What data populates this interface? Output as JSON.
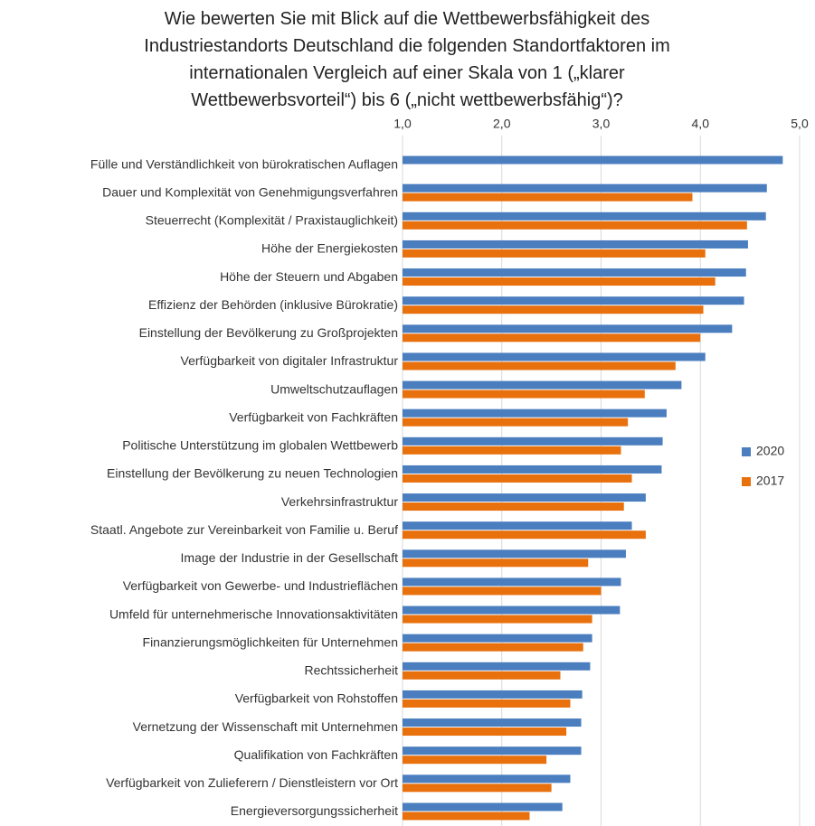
{
  "chart_data": {
    "type": "hbar",
    "title": "Wie bewerten Sie mit Blick auf die Wettbewerbsfähigkeit des Industriestandorts Deutschland die folgenden Standortfaktoren im internationalen Vergleich auf einer Skala von 1 („klarer Wettbewerbsvorteil“) bis 6 („nicht wettbewerbsfähig“)?",
    "categories": [
      "Fülle und Verständlichkeit von bürokratischen Auflagen",
      "Dauer und Komplexität von Genehmigungsverfahren",
      "Steuerrecht (Komplexität / Praxistauglichkeit)",
      "Höhe der Energiekosten",
      "Höhe der Steuern und Abgaben",
      "Effizienz der Behörden (inklusive Bürokratie)",
      "Einstellung der Bevölkerung zu Großprojekten",
      "Verfügbarkeit von digitaler Infrastruktur",
      "Umweltschutzauflagen",
      "Verfügbarkeit von Fachkräften",
      "Politische Unterstützung im globalen Wettbewerb",
      "Einstellung der Bevölkerung zu neuen Technologien",
      "Verkehrsinfrastruktur",
      "Staatl. Angebote zur Vereinbarkeit von Familie u. Beruf",
      "Image der Industrie in der Gesellschaft",
      "Verfügbarkeit von Gewerbe- und Industrieflächen",
      "Umfeld für unternehmerische Innovationsaktivitäten",
      "Finanzierungsmöglichkeiten für Unternehmen",
      "Rechtssicherheit",
      "Verfügbarkeit von Rohstoffen",
      "Vernetzung der Wissenschaft mit Unternehmen",
      "Qualifikation von Fachkräften",
      "Verfügbarkeit von Zulieferern / Dienstleistern vor Ort",
      "Energieversorgungssicherheit"
    ],
    "series": [
      {
        "name": "2020",
        "color": "#4a7ebf",
        "values": [
          4.83,
          4.67,
          4.66,
          4.48,
          4.46,
          4.44,
          4.32,
          4.05,
          3.81,
          3.66,
          3.62,
          3.61,
          3.45,
          3.31,
          3.25,
          3.2,
          3.19,
          2.91,
          2.89,
          2.81,
          2.8,
          2.8,
          2.69,
          2.61
        ]
      },
      {
        "name": "2017",
        "color": "#e8700d",
        "values": [
          null,
          3.92,
          4.47,
          4.05,
          4.15,
          4.03,
          4.0,
          3.75,
          3.44,
          3.27,
          3.2,
          3.31,
          3.23,
          3.45,
          2.87,
          3.0,
          2.91,
          2.82,
          2.59,
          2.69,
          2.65,
          2.45,
          2.5,
          2.28
        ]
      }
    ],
    "xlim": [
      1,
      5
    ],
    "xticks": [
      {
        "value": 1,
        "label": "1,0"
      },
      {
        "value": 2,
        "label": "2,0"
      },
      {
        "value": 3,
        "label": "3,0"
      },
      {
        "value": 4,
        "label": "4,0"
      },
      {
        "value": 5,
        "label": "5,0"
      }
    ],
    "grid": true,
    "legend": "right"
  }
}
